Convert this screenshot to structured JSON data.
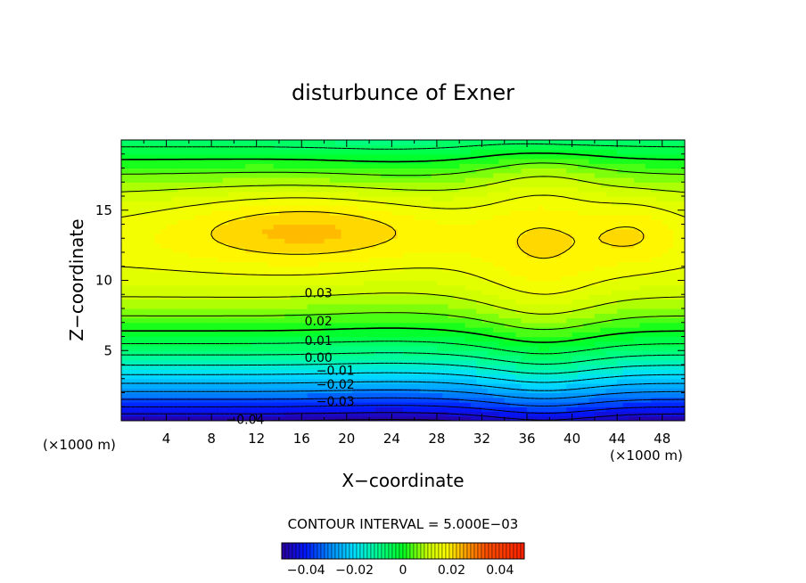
{
  "chart_data": {
    "type": "heatmap",
    "title": "disturbunce of Exner",
    "xlabel": "X−coordinate",
    "ylabel": "Z−coordinate",
    "x_unit_left": "(×1000 m)",
    "x_unit_right": "(×1000 m)",
    "xlim": [
      0,
      50
    ],
    "ylim": [
      0,
      20
    ],
    "x_ticks": [
      "4",
      "8",
      "12",
      "16",
      "20",
      "24",
      "28",
      "32",
      "36",
      "40",
      "44",
      "48"
    ],
    "y_ticks": [
      "5",
      "10",
      "15"
    ],
    "contour_interval_text": "CONTOUR INTERVAL = 5.000E−03",
    "contour_labels": [
      {
        "text": "0.03",
        "x": 17.5,
        "y": 9.1
      },
      {
        "text": "0.02",
        "x": 17.5,
        "y": 7.1
      },
      {
        "text": "0.01",
        "x": 17.5,
        "y": 5.7
      },
      {
        "text": "0.00",
        "x": 17.5,
        "y": 4.5
      },
      {
        "text": "−0.01",
        "x": 19.0,
        "y": 3.6
      },
      {
        "text": "−0.02",
        "x": 19.0,
        "y": 2.6
      },
      {
        "text": "−0.03",
        "x": 19.0,
        "y": 1.4
      },
      {
        "text": "−0.04",
        "x": 11.0,
        "y": 0.1
      }
    ],
    "colorbar": {
      "range": [
        -0.05,
        0.05
      ],
      "tick_labels": [
        "−0.04",
        "−0.02",
        "0",
        "0.02",
        "0.04"
      ],
      "tick_values": [
        -0.04,
        -0.02,
        0,
        0.02,
        0.04
      ]
    },
    "colors": {
      "min": "#2a00a0",
      "blue": "#0018ff",
      "cyan": "#00e0ff",
      "green": "#00ff20",
      "yellow": "#ffff00",
      "orange": "#ff9000",
      "max": "#ff2000"
    }
  }
}
